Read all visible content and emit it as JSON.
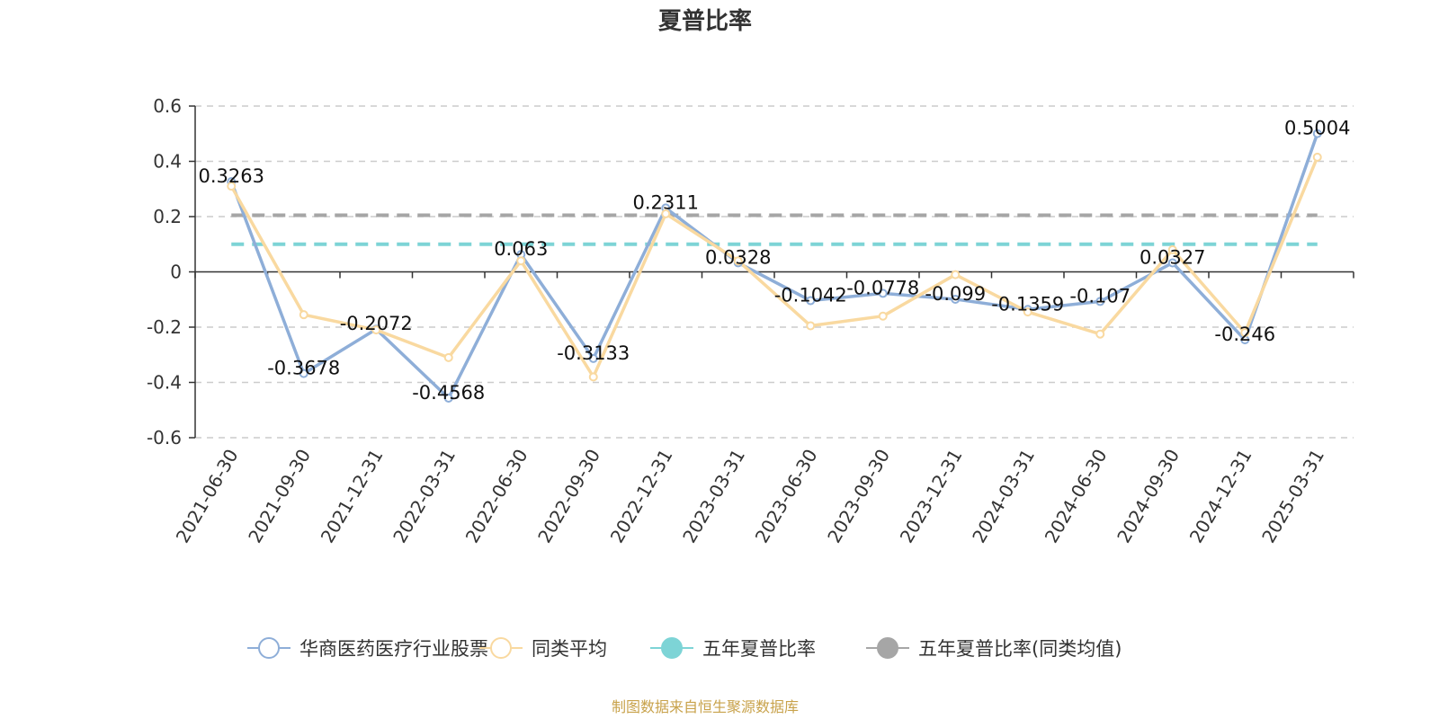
{
  "chart_data": {
    "type": "line",
    "title": "夏普比率",
    "categories": [
      "2021-06-30",
      "2021-09-30",
      "2021-12-31",
      "2022-03-31",
      "2022-06-30",
      "2022-09-30",
      "2022-12-31",
      "2023-03-31",
      "2023-06-30",
      "2023-09-30",
      "2023-12-31",
      "2024-03-31",
      "2024-06-30",
      "2024-09-30",
      "2024-12-31",
      "2025-03-31"
    ],
    "ylim": [
      -0.6,
      0.6
    ],
    "yticks": [
      "0.6",
      "0.4",
      "0.2",
      "0",
      "-0.2",
      "-0.4",
      "-0.6"
    ],
    "ytick_values": [
      0.6,
      0.4,
      0.2,
      0,
      -0.2,
      -0.4,
      -0.6
    ],
    "grid": true,
    "legend_position": "bottom",
    "series": [
      {
        "name": "华商医药医疗行业股票",
        "color": "#8eaed8",
        "values": [
          0.3263,
          -0.3678,
          -0.2072,
          -0.4568,
          0.063,
          -0.3133,
          0.2311,
          0.0328,
          -0.1042,
          -0.0778,
          -0.099,
          -0.1359,
          -0.107,
          0.0327,
          -0.246,
          0.5004
        ],
        "labels": [
          "0.3263",
          "-0.3678",
          "-0.2072",
          "-0.4568",
          "0.063",
          "-0.3133",
          "0.2311",
          "0.0328",
          "-0.1042",
          "-0.0778",
          "-0.099",
          "-0.1359",
          "-0.107",
          "0.0327",
          "-0.246",
          "0.5004"
        ]
      },
      {
        "name": "同类平均",
        "color": "#f9d9a0",
        "values": [
          0.31,
          -0.155,
          -0.21,
          -0.31,
          0.04,
          -0.38,
          0.21,
          0.04,
          -0.195,
          -0.16,
          -0.01,
          -0.145,
          -0.225,
          0.08,
          -0.22,
          0.415
        ]
      },
      {
        "name": "五年夏普比率",
        "color": "#7dd4d6",
        "style": "dashed",
        "value": 0.1
      },
      {
        "name": "五年夏普比率(同类均值)",
        "color": "#a6a6a6",
        "style": "dashed",
        "value": 0.205
      }
    ]
  },
  "footer": {
    "source": "制图数据来自恒生聚源数据库"
  }
}
